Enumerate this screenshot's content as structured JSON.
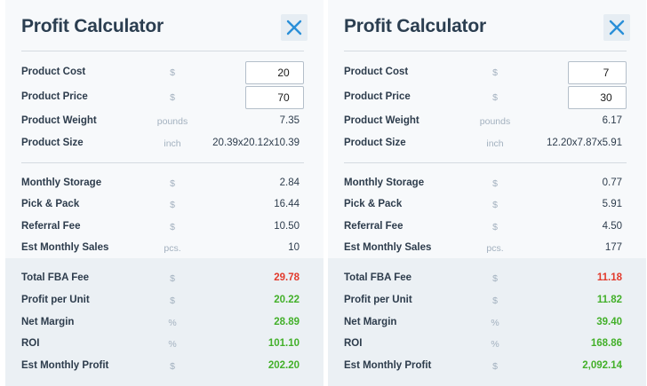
{
  "panels": [
    {
      "title": "Profit Calculator",
      "close_icon": "close-x-icon",
      "inputs": [
        {
          "label": "Product Cost",
          "unit": "$",
          "value": "20"
        },
        {
          "label": "Product Price",
          "unit": "$",
          "value": "70"
        }
      ],
      "specs": [
        {
          "label": "Product Weight",
          "unit": "pounds",
          "value": "7.35"
        },
        {
          "label": "Product Size",
          "unit": "inch",
          "value": "20.39x20.12x10.39"
        }
      ],
      "fees": [
        {
          "label": "Monthly Storage",
          "unit": "$",
          "value": "2.84"
        },
        {
          "label": "Pick & Pack",
          "unit": "$",
          "value": "16.44"
        },
        {
          "label": "Referral Fee",
          "unit": "$",
          "value": "10.50"
        },
        {
          "label": "Est Monthly Sales",
          "unit": "pcs.",
          "value": "10"
        }
      ],
      "results": [
        {
          "label": "Total FBA Fee",
          "unit": "$",
          "value": "29.78"
        },
        {
          "label": "Profit per Unit",
          "unit": "$",
          "value": "20.22"
        },
        {
          "label": "Net Margin",
          "unit": "%",
          "value": "28.89"
        },
        {
          "label": "ROI",
          "unit": "%",
          "value": "101.10"
        },
        {
          "label": "Est Monthly Profit",
          "unit": "$",
          "value": "202.20"
        }
      ]
    },
    {
      "title": "Profit Calculator",
      "close_icon": "close-x-icon",
      "inputs": [
        {
          "label": "Product Cost",
          "unit": "$",
          "value": "7"
        },
        {
          "label": "Product Price",
          "unit": "$",
          "value": "30"
        }
      ],
      "specs": [
        {
          "label": "Product Weight",
          "unit": "pounds",
          "value": "6.17"
        },
        {
          "label": "Product Size",
          "unit": "inch",
          "value": "12.20x7.87x5.91"
        }
      ],
      "fees": [
        {
          "label": "Monthly Storage",
          "unit": "$",
          "value": "0.77"
        },
        {
          "label": "Pick & Pack",
          "unit": "$",
          "value": "5.91"
        },
        {
          "label": "Referral Fee",
          "unit": "$",
          "value": "4.50"
        },
        {
          "label": "Est Monthly Sales",
          "unit": "pcs.",
          "value": "177"
        }
      ],
      "results": [
        {
          "label": "Total FBA Fee",
          "unit": "$",
          "value": "11.18"
        },
        {
          "label": "Profit per Unit",
          "unit": "$",
          "value": "11.82"
        },
        {
          "label": "Net Margin",
          "unit": "%",
          "value": "39.40"
        },
        {
          "label": "ROI",
          "unit": "%",
          "value": "168.86"
        },
        {
          "label": "Est Monthly Profit",
          "unit": "$",
          "value": "2,092.14"
        }
      ]
    }
  ],
  "colors": {
    "accent": "#2a8fd8",
    "negative": "#e23a2c",
    "positive": "#43b02a"
  }
}
